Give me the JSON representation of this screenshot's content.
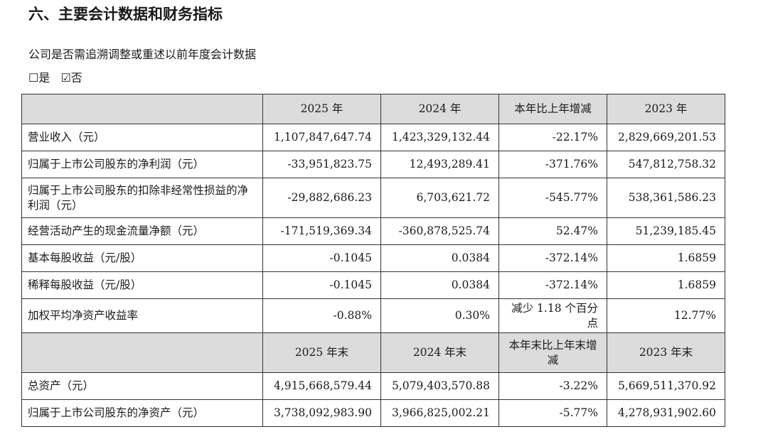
{
  "section_title": "六、主要会计数据和财务指标",
  "restatement": {
    "question": "公司是否需追溯调整或重述以前年度会计数据",
    "yes_box": "☐",
    "yes_label": "是",
    "no_box": "☑",
    "no_label": "否"
  },
  "table": {
    "header1": [
      "",
      "2025 年",
      "2024 年",
      "本年比上年增减",
      "2023 年"
    ],
    "rows1": [
      [
        "营业收入（元）",
        "1,107,847,647.74",
        "1,423,329,132.44",
        "-22.17%",
        "2,829,669,201.53"
      ],
      [
        "归属于上市公司股东的净利润（元）",
        "-33,951,823.75",
        "12,493,289.41",
        "-371.76%",
        "547,812,758.32"
      ],
      [
        "归属于上市公司股东的扣除非经常性损益的净利润（元）",
        "-29,882,686.23",
        "6,703,621.72",
        "-545.77%",
        "538,361,586.23"
      ],
      [
        "经营活动产生的现金流量净额（元）",
        "-171,519,369.34",
        "-360,878,525.74",
        "52.47%",
        "51,239,185.45"
      ],
      [
        "基本每股收益（元/股）",
        "-0.1045",
        "0.0384",
        "-372.14%",
        "1.6859"
      ],
      [
        "稀释每股收益（元/股）",
        "-0.1045",
        "0.0384",
        "-372.14%",
        "1.6859"
      ],
      [
        "加权平均净资产收益率",
        "-0.88%",
        "0.30%",
        "减少 1.18 个百分点",
        "12.77%"
      ]
    ],
    "header2": [
      "",
      "2025 年末",
      "2024 年末",
      "本年末比上年末增减",
      "2023 年末"
    ],
    "rows2": [
      [
        "总资产（元）",
        "4,915,668,579.44",
        "5,079,403,570.88",
        "-3.22%",
        "5,669,511,370.92"
      ],
      [
        "归属于上市公司股东的净资产（元）",
        "3,738,092,983.90",
        "3,966,825,002.21",
        "-5.77%",
        "4,278,931,902.60"
      ]
    ]
  },
  "colors": {
    "header_bg": "#dcdcdc",
    "border": "#333333",
    "text": "#1a1a1a"
  }
}
